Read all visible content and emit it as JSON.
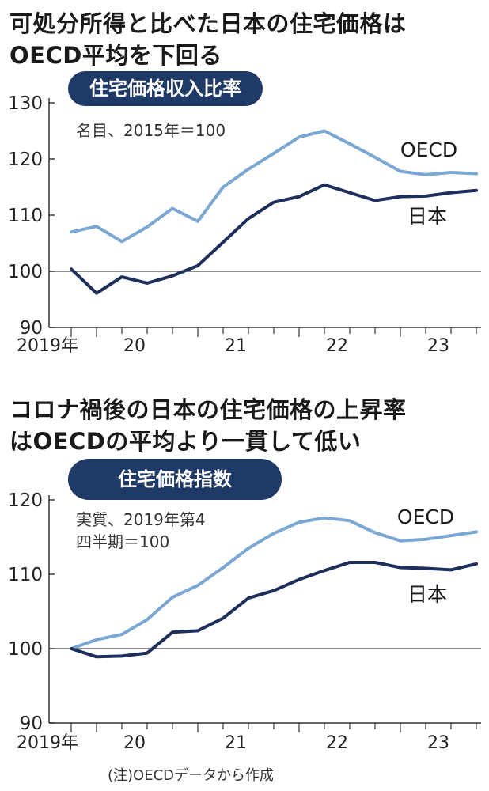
{
  "charts": [
    {
      "headline_lines": [
        "可処分所得と比べた日本の住宅価格は",
        "OECD平均を下回る"
      ],
      "badge": "住宅価格収入比率",
      "note_lines": [
        "名目、2015年＝100"
      ],
      "colors": {
        "oecd": "#7BA7D3",
        "japan": "#1F2F5C",
        "badge": "#1F3A66"
      }
    },
    {
      "headline_lines": [
        "コロナ禍後の日本の住宅価格の上昇率",
        "はOECDの平均より一貫して低い"
      ],
      "badge": "住宅価格指数",
      "note_lines": [
        "実質、2019年第4",
        "四半期＝100"
      ],
      "colors": {
        "oecd": "#7BA7D3",
        "japan": "#1F2F5C",
        "badge": "#1F3A66"
      }
    }
  ],
  "footnote": "(注)OECDデータから作成",
  "chart_data": [
    {
      "type": "line",
      "title": "住宅価格収入比率",
      "subtitle": "名目、2015年＝100",
      "x": [
        "2019Q4",
        "2020Q1",
        "2020Q2",
        "2020Q3",
        "2020Q4",
        "2021Q1",
        "2021Q2",
        "2021Q3",
        "2021Q4",
        "2022Q1",
        "2022Q2",
        "2022Q3",
        "2022Q4",
        "2023Q1",
        "2023Q2",
        "2023Q3",
        "2023Q4"
      ],
      "x_tick_labels": [
        "2019年",
        "20",
        "21",
        "22",
        "23"
      ],
      "y_ticks": [
        90,
        100,
        110,
        120,
        130
      ],
      "ylim": [
        90,
        130
      ],
      "reference_line": 100,
      "series": [
        {
          "name": "OECD",
          "values": [
            107.0,
            108.0,
            105.3,
            107.9,
            111.2,
            108.9,
            115.0,
            118.2,
            121.0,
            123.9,
            125.0,
            122.7,
            120.3,
            117.8,
            117.2,
            117.6,
            117.4
          ]
        },
        {
          "name": "日本",
          "values": [
            100.4,
            96.1,
            99.0,
            97.9,
            99.2,
            101.0,
            105.2,
            109.4,
            112.3,
            113.3,
            115.4,
            114.0,
            112.6,
            113.3,
            113.4,
            114.0,
            114.4
          ]
        }
      ]
    },
    {
      "type": "line",
      "title": "住宅価格指数",
      "subtitle": "実質、2019年第4四半期＝100",
      "x": [
        "2019Q4",
        "2020Q1",
        "2020Q2",
        "2020Q3",
        "2020Q4",
        "2021Q1",
        "2021Q2",
        "2021Q3",
        "2021Q4",
        "2022Q1",
        "2022Q2",
        "2022Q3",
        "2022Q4",
        "2023Q1",
        "2023Q2",
        "2023Q3",
        "2023Q4"
      ],
      "x_tick_labels": [
        "2019年",
        "20",
        "21",
        "22",
        "23"
      ],
      "y_ticks": [
        90,
        100,
        110,
        120
      ],
      "ylim": [
        90,
        120
      ],
      "reference_line": 100,
      "series": [
        {
          "name": "OECD",
          "values": [
            100.0,
            101.2,
            101.9,
            103.9,
            106.9,
            108.5,
            110.9,
            113.5,
            115.5,
            117.0,
            117.6,
            117.2,
            115.6,
            114.5,
            114.7,
            115.2,
            115.7
          ]
        },
        {
          "name": "日本",
          "values": [
            100.0,
            98.9,
            99.0,
            99.4,
            102.2,
            102.4,
            104.1,
            106.8,
            107.8,
            109.3,
            110.5,
            111.6,
            111.6,
            110.9,
            110.8,
            110.6,
            111.4
          ]
        }
      ]
    }
  ]
}
